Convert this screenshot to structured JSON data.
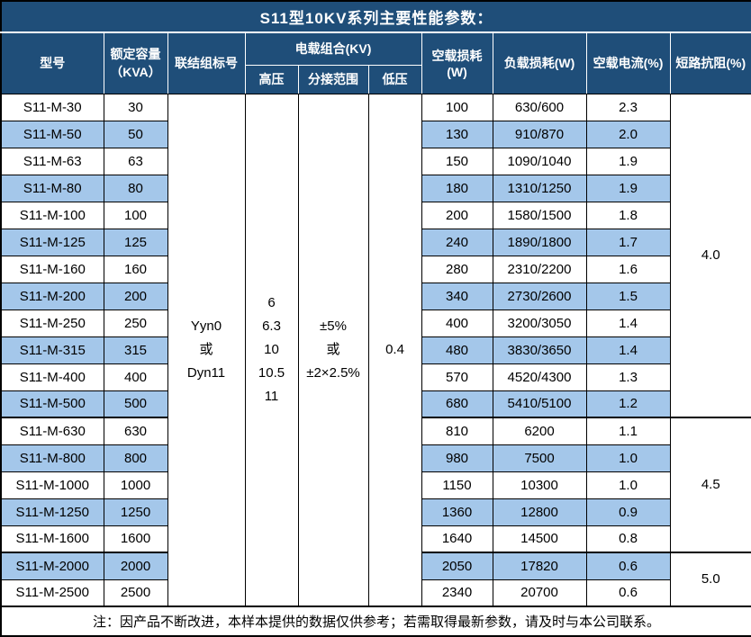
{
  "title": "S11型10KV系列主要性能参数：",
  "colors": {
    "header_bg": "#1f4e79",
    "header_text": "#ffffff",
    "row_alt_bg": "#a4c7ea",
    "border": "#000000",
    "body_text": "#000000"
  },
  "table": {
    "headers": {
      "model": "型号",
      "capacity": "额定容量\n（KVA）",
      "connection": "联结组标号",
      "load_combo": "电载组合(KV)",
      "hv": "高压",
      "tap_range": "分接范围",
      "lv": "低压",
      "no_load_loss": "空载损耗(W)",
      "load_loss": "负载损耗(W)",
      "no_load_current": "空载电流(%)",
      "impedance": "短路抗阻(%)"
    },
    "merged": {
      "connection": "Yyn0\n或\nDyn11",
      "hv": "6\n6.3\n10\n10.5\n11",
      "tap_range": "±5%\n或\n±2×2.5%",
      "lv": "0.4"
    },
    "rows": [
      {
        "model": "S11-M-30",
        "capacity": "30",
        "no_load_loss": "100",
        "load_loss": "630/600",
        "no_load_current": "2.3"
      },
      {
        "model": "S11-M-50",
        "capacity": "50",
        "no_load_loss": "130",
        "load_loss": "910/870",
        "no_load_current": "2.0"
      },
      {
        "model": "S11-M-63",
        "capacity": "63",
        "no_load_loss": "150",
        "load_loss": "1090/1040",
        "no_load_current": "1.9"
      },
      {
        "model": "S11-M-80",
        "capacity": "80",
        "no_load_loss": "180",
        "load_loss": "1310/1250",
        "no_load_current": "1.9"
      },
      {
        "model": "S11-M-100",
        "capacity": "100",
        "no_load_loss": "200",
        "load_loss": "1580/1500",
        "no_load_current": "1.8"
      },
      {
        "model": "S11-M-125",
        "capacity": "125",
        "no_load_loss": "240",
        "load_loss": "1890/1800",
        "no_load_current": "1.7"
      },
      {
        "model": "S11-M-160",
        "capacity": "160",
        "no_load_loss": "280",
        "load_loss": "2310/2200",
        "no_load_current": "1.6"
      },
      {
        "model": "S11-M-200",
        "capacity": "200",
        "no_load_loss": "340",
        "load_loss": "2730/2600",
        "no_load_current": "1.5"
      },
      {
        "model": "S11-M-250",
        "capacity": "250",
        "no_load_loss": "400",
        "load_loss": "3200/3050",
        "no_load_current": "1.4"
      },
      {
        "model": "S11-M-315",
        "capacity": "315",
        "no_load_loss": "480",
        "load_loss": "3830/3650",
        "no_load_current": "1.4"
      },
      {
        "model": "S11-M-400",
        "capacity": "400",
        "no_load_loss": "570",
        "load_loss": "4520/4300",
        "no_load_current": "1.3"
      },
      {
        "model": "S11-M-500",
        "capacity": "500",
        "no_load_loss": "680",
        "load_loss": "5410/5100",
        "no_load_current": "1.2"
      },
      {
        "model": "S11-M-630",
        "capacity": "630",
        "no_load_loss": "810",
        "load_loss": "6200",
        "no_load_current": "1.1"
      },
      {
        "model": "S11-M-800",
        "capacity": "800",
        "no_load_loss": "980",
        "load_loss": "7500",
        "no_load_current": "1.0"
      },
      {
        "model": "S11-M-1000",
        "capacity": "1000",
        "no_load_loss": "1150",
        "load_loss": "10300",
        "no_load_current": "1.0"
      },
      {
        "model": "S11-M-1250",
        "capacity": "1250",
        "no_load_loss": "1360",
        "load_loss": "12800",
        "no_load_current": "0.9"
      },
      {
        "model": "S11-M-1600",
        "capacity": "1600",
        "no_load_loss": "1640",
        "load_loss": "14500",
        "no_load_current": "0.8"
      },
      {
        "model": "S11-M-2000",
        "capacity": "2000",
        "no_load_loss": "2050",
        "load_loss": "17820",
        "no_load_current": "0.6"
      },
      {
        "model": "S11-M-2500",
        "capacity": "2500",
        "no_load_loss": "2340",
        "load_loss": "20700",
        "no_load_current": "0.6"
      }
    ],
    "impedance_groups": [
      {
        "value": "4.0",
        "rows": 12
      },
      {
        "value": "4.5",
        "rows": 5
      },
      {
        "value": "5.0",
        "rows": 2
      }
    ]
  },
  "footer_note": "注：因产品不断改进，本样本提供的数据仅供参考；若需取得最新参数，请及时与本公司联系。"
}
